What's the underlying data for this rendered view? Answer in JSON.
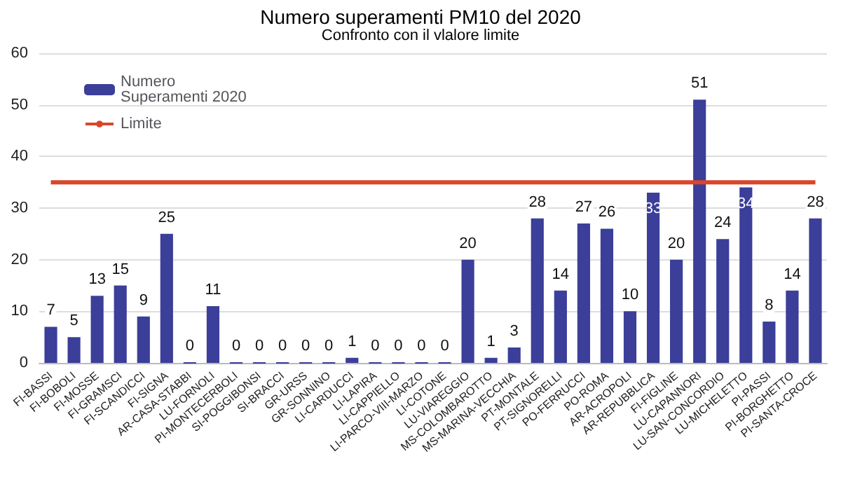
{
  "chart_data": {
    "type": "bar",
    "title": "Numero superamenti PM10 del 2020",
    "subtitle": "Confronto con il vlalore limite",
    "categories": [
      "FI-BASSI",
      "FI-BOBOLI",
      "FI-MOSSE",
      "FI-GRAMSCI",
      "FI-SCANDICCI",
      "FI-SIGNA",
      "AR-CASA-STABBI",
      "LU-FORNOLI",
      "PI-MONTECERBOLI",
      "SI-POGGIBONSI",
      "SI-BRACCI",
      "GR-URSS",
      "GR-SONNINO",
      "LI-CARDUCCI",
      "LI-LAPIRA",
      "LI-CAPPIELLO",
      "LI-PARCO-VIII-MARZO",
      "LI-COTONE",
      "LU-VIAREGGIO",
      "MS-COLOMBAROTTO",
      "MS-MARINA-VECCHIA",
      "PT-MONTALE",
      "PT-SIGNORELLI",
      "PO-FERRUCCI",
      "PO-ROMA",
      "AR-ACROPOLI",
      "AR-REPUBBLICA",
      "FI-FIGLINE",
      "LU-CAPANNORI",
      "LU-SAN-CONCORDIO",
      "LU-MICHELETTO",
      "PI-PASSI",
      "PI-BORGHETTO",
      "PI-SANTA-CROCE"
    ],
    "series": [
      {
        "name": "Numero Superamenti 2020",
        "color": "#3b3f99",
        "values": [
          7,
          5,
          13,
          15,
          9,
          25,
          0,
          11,
          0,
          0,
          0,
          0,
          0,
          1,
          0,
          0,
          0,
          0,
          20,
          1,
          3,
          28,
          14,
          27,
          26,
          10,
          33,
          20,
          51,
          24,
          34,
          8,
          14,
          28
        ],
        "value_labels": [
          "7",
          "5",
          "13",
          "15",
          "9",
          "25",
          "0",
          "11",
          "0",
          "0",
          "0",
          "0",
          "0",
          "1",
          "0",
          "0",
          "0",
          "0",
          "20",
          "1",
          "3",
          "28",
          "14",
          "27",
          "26",
          "10",
          "33",
          "20",
          "51",
          "24",
          "34",
          "8",
          "14",
          "28"
        ]
      },
      {
        "name": "Limite",
        "type": "line",
        "color": "#d9462b",
        "values": [
          35,
          35,
          35,
          35,
          35,
          35,
          35,
          35,
          35,
          35,
          35,
          35,
          35,
          35,
          35,
          35,
          35,
          35,
          35,
          35,
          35,
          35,
          35,
          35,
          35,
          35,
          35,
          35,
          35,
          35,
          35,
          35,
          35,
          35
        ]
      }
    ],
    "ylim": [
      0,
      60
    ],
    "yticks": [
      0,
      10,
      20,
      30,
      40,
      50,
      60
    ],
    "grid": "y",
    "legend": "top left"
  }
}
